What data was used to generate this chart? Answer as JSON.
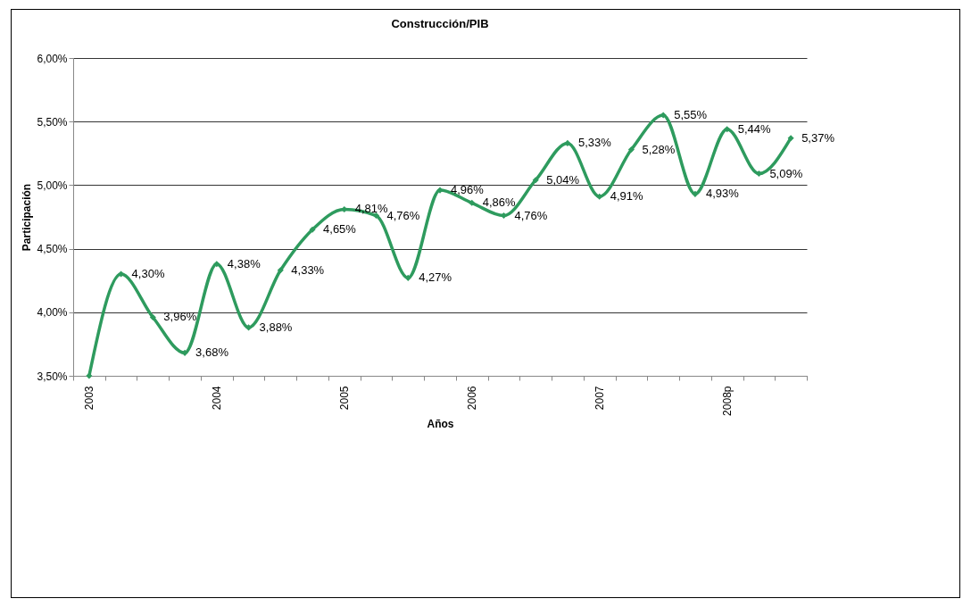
{
  "chart_data": {
    "type": "line",
    "title": "Construcción/PIB",
    "xlabel": "Años",
    "ylabel": "Participación",
    "categories": [
      "2003",
      null,
      null,
      null,
      "2004",
      null,
      null,
      null,
      "2005",
      null,
      null,
      null,
      "2006",
      null,
      null,
      null,
      "2007",
      null,
      null,
      null,
      "2008p",
      null,
      null
    ],
    "series": [
      {
        "color": "#2e9b5e",
        "values": [
          3.5,
          4.3,
          3.96,
          3.68,
          4.38,
          3.88,
          4.33,
          4.65,
          4.81,
          4.76,
          4.27,
          4.96,
          4.86,
          4.76,
          5.04,
          5.33,
          4.91,
          5.28,
          5.55,
          4.93,
          5.44,
          5.09,
          5.37
        ],
        "value_labels": [
          null,
          "4,30%",
          "3,96%",
          "3,68%",
          "4,38%",
          "3,88%",
          "4,33%",
          "4,65%",
          "4,81%",
          "4,76%",
          "4,27%",
          "4,96%",
          "4,86%",
          "4,76%",
          "5,04%",
          "5,33%",
          "4,91%",
          "5,28%",
          "5,55%",
          "4,93%",
          "5,44%",
          "5,09%",
          "5,37%"
        ]
      }
    ],
    "ylim": [
      3.5,
      6.0
    ],
    "yticks": [
      {
        "value": 3.5,
        "label": "3,50%"
      },
      {
        "value": 4.0,
        "label": "4,00%"
      },
      {
        "value": 4.5,
        "label": "4,50%"
      },
      {
        "value": 5.0,
        "label": "5,00%"
      },
      {
        "value": 5.5,
        "label": "5,50%"
      },
      {
        "value": 6.0,
        "label": "6,00%"
      }
    ],
    "grid": "y",
    "marker": "diamond",
    "line_style": "solid"
  }
}
